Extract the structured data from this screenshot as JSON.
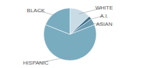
{
  "chart_data": {
    "type": "pie",
    "categories": [
      "WHITE",
      "A.I.",
      "ASIAN",
      "HISPANIC",
      "BLACK"
    ],
    "values": [
      13,
      2,
      4,
      62,
      19
    ],
    "colors": [
      "#c9dce6",
      "#3d6e87",
      "#6a9ab0",
      "#7aacc0",
      "#7aacc0"
    ]
  }
}
